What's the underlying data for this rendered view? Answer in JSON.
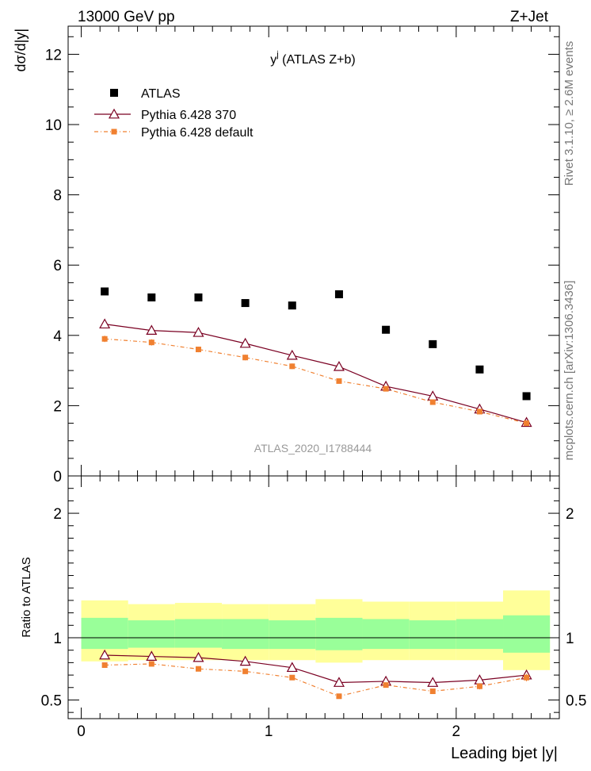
{
  "header": {
    "left": "13000 GeV pp",
    "right": "Z+Jet"
  },
  "side_labels": {
    "rivet": "Rivet 3.1.10, ≥ 2.6M events",
    "mcplots": "mcplots.cern.ch [arXiv:1306.3436]"
  },
  "watermark": "ATLAS_2020_I1788444",
  "chart_data": [
    {
      "type": "scatter",
      "panel": "main",
      "title": "y",
      "title_superscript": "j",
      "title_suffix": " (ATLAS Z+b)",
      "ylabel": "dσ/d|y|",
      "xlim": [
        -0.07,
        2.55
      ],
      "ylim": [
        0,
        12.8
      ],
      "yticks": [
        0,
        2,
        4,
        6,
        8,
        10,
        12
      ],
      "yticklabels": [
        "0",
        "2",
        "4",
        "6",
        "8",
        "10",
        "12"
      ],
      "x": [
        0.125,
        0.375,
        0.625,
        0.875,
        1.125,
        1.375,
        1.625,
        1.875,
        2.125,
        2.375
      ],
      "series": [
        {
          "name": "ATLAS",
          "color": "#000000",
          "marker": "square",
          "values": [
            5.25,
            5.08,
            5.08,
            4.92,
            4.85,
            5.17,
            4.16,
            3.75,
            3.03,
            2.27
          ]
        },
        {
          "name": "Pythia 6.428 370",
          "color": "#7a0022",
          "marker": "open-triangle",
          "values": [
            4.32,
            4.14,
            4.08,
            3.77,
            3.43,
            3.11,
            2.55,
            2.27,
            1.9,
            1.52
          ],
          "errors": [
            0.05,
            0.05,
            0.05,
            0.05,
            0.05,
            0.05,
            0.05,
            0.05,
            0.05,
            0.05
          ]
        },
        {
          "name": "Pythia 6.428 default",
          "color": "#f08030",
          "marker": "filled-square-small",
          "values": [
            3.9,
            3.8,
            3.6,
            3.37,
            3.12,
            2.7,
            2.48,
            2.1,
            1.83,
            1.5
          ],
          "errors": [
            0.09,
            0.09,
            0.08,
            0.08,
            0.08,
            0.07,
            0.07,
            0.07,
            0.07,
            0.06
          ]
        }
      ],
      "legend": "top-left"
    },
    {
      "type": "line",
      "panel": "ratio",
      "ylabel": "Ratio to ATLAS",
      "xlabel": "Leading bjet |y|",
      "xlim": [
        -0.07,
        2.55
      ],
      "ylim": [
        0.35,
        2.3
      ],
      "yticks": [
        0.5,
        1,
        2
      ],
      "yticklabels": [
        "0.5",
        "1",
        "2"
      ],
      "xticks": [
        0,
        1,
        2
      ],
      "xticklabels": [
        "0",
        "1",
        "2"
      ],
      "x_edges": [
        0,
        0.25,
        0.5,
        0.75,
        1.0,
        1.25,
        1.5,
        1.75,
        2.0,
        2.25,
        2.5
      ],
      "bands": {
        "outer_color": "#ffff99",
        "inner_color": "#99ff99",
        "outer_low": [
          0.81,
          0.82,
          0.82,
          0.82,
          0.82,
          0.8,
          0.82,
          0.82,
          0.82,
          0.74
        ],
        "outer_high": [
          1.3,
          1.27,
          1.28,
          1.27,
          1.27,
          1.31,
          1.29,
          1.29,
          1.29,
          1.38
        ],
        "inner_low": [
          0.91,
          0.92,
          0.92,
          0.91,
          0.91,
          0.9,
          0.91,
          0.91,
          0.91,
          0.88
        ],
        "inner_high": [
          1.16,
          1.14,
          1.15,
          1.15,
          1.14,
          1.16,
          1.15,
          1.14,
          1.15,
          1.18
        ]
      },
      "x": [
        0.125,
        0.375,
        0.625,
        0.875,
        1.125,
        1.375,
        1.625,
        1.875,
        2.125,
        2.375
      ],
      "series": [
        {
          "name": "Pythia 6.428 370",
          "color": "#7a0022",
          "marker": "open-triangle",
          "values": [
            0.86,
            0.85,
            0.84,
            0.81,
            0.76,
            0.64,
            0.65,
            0.64,
            0.66,
            0.7
          ],
          "errors": [
            0.012,
            0.012,
            0.012,
            0.012,
            0.012,
            0.012,
            0.014,
            0.014,
            0.016,
            0.02
          ]
        },
        {
          "name": "Pythia 6.428 default",
          "color": "#f08030",
          "marker": "filled-square-small",
          "values": [
            0.78,
            0.79,
            0.75,
            0.73,
            0.68,
            0.53,
            0.62,
            0.57,
            0.61,
            0.68
          ],
          "errors": [
            0.016,
            0.016,
            0.016,
            0.016,
            0.018,
            0.018,
            0.02,
            0.022,
            0.025,
            0.03
          ]
        }
      ]
    }
  ]
}
